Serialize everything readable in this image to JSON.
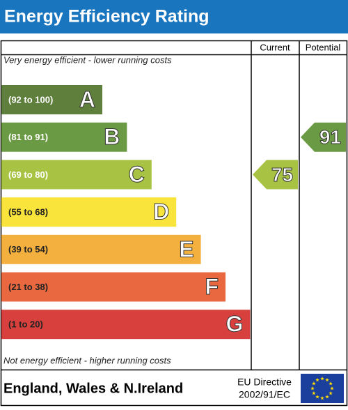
{
  "header": {
    "title": "Energy Efficiency Rating"
  },
  "columns": {
    "current": "Current",
    "potential": "Potential"
  },
  "top_note": "Very energy efficient - lower running costs",
  "bottom_note": "Not energy efficient - higher running costs",
  "bands": [
    {
      "range": "(92 to 100)",
      "letter": "A",
      "color": "#5f7f3c"
    },
    {
      "range": "(81 to 91)",
      "letter": "B",
      "color": "#6b9a44"
    },
    {
      "range": "(69 to 80)",
      "letter": "C",
      "color": "#a8c343"
    },
    {
      "range": "(55 to 68)",
      "letter": "D",
      "color": "#f9e43c"
    },
    {
      "range": "(39 to 54)",
      "letter": "E",
      "color": "#f4b03e"
    },
    {
      "range": "(21 to 38)",
      "letter": "F",
      "color": "#e9683f"
    },
    {
      "range": "(1 to 20)",
      "letter": "G",
      "color": "#d8403e"
    }
  ],
  "current": {
    "value": 75
  },
  "potential": {
    "value": 91
  },
  "footer": {
    "region": "England, Wales & N.Ireland",
    "directive_line1": "EU Directive",
    "directive_line2": "2002/91/EC"
  }
}
